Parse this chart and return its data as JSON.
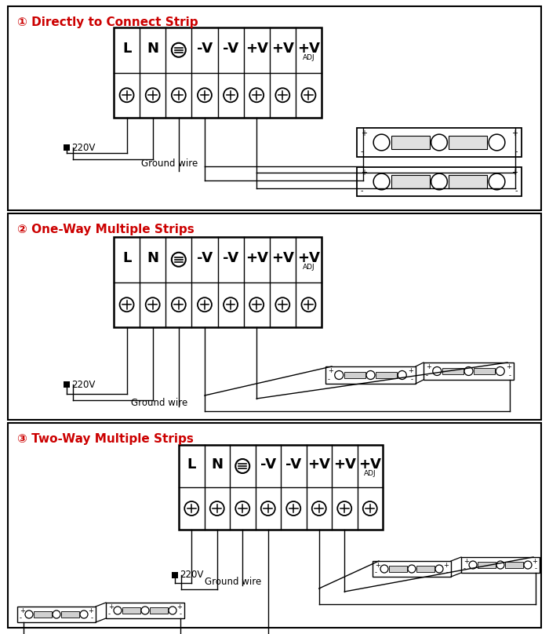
{
  "bg_color": "#ffffff",
  "border_color": "#000000",
  "title_color": "#cc0000",
  "diagram1_title": "① Directly to Connect Strip",
  "diagram2_title": "② One-Way Multiple Strips",
  "diagram3_title": "③ Two-Way Multiple Strips"
}
